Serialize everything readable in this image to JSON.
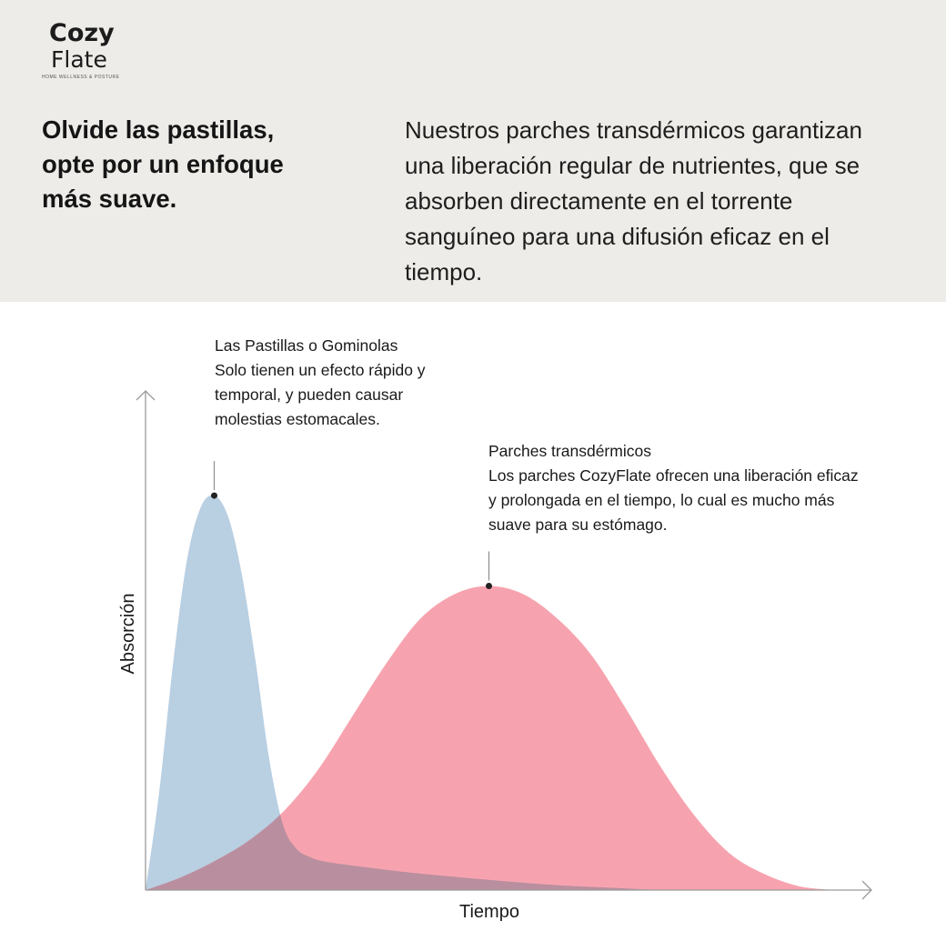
{
  "brand": {
    "logo_line1": "Cozy",
    "logo_line2": "Flate",
    "tagline": "HOME WELLNESS & POSTURE"
  },
  "header": {
    "headline_lines": [
      "Olvide las pastillas,",
      "opte por un enfoque",
      "más suave."
    ],
    "intro_lines": [
      "Nuestros parches transdérmicos garantizan",
      "una liberación regular de nutrientes, que se",
      "absorben directamente en el torrente",
      "sanguíneo para una difusión eficaz en el",
      "tiempo."
    ]
  },
  "colors": {
    "background_band": "#edece8",
    "pills_fill": "#b9cfe2",
    "patches_fill": "#f7a3af",
    "overlap_fill": "#b98f9f",
    "axis": "#9a9a9a"
  },
  "chart_data": {
    "type": "area",
    "xlabel": "Tiempo",
    "ylabel": "Absorción",
    "x_ticks": "none",
    "y_ticks": "none",
    "xlim": [
      0,
      100
    ],
    "ylim": [
      0,
      100
    ],
    "grid": false,
    "series": [
      {
        "name": "Las Pastillas o Gominolas",
        "annotation_lines": [
          "Las Pastillas o Gominolas",
          "Solo tienen un efecto rápido y",
          "temporal, y pueden causar",
          "molestias estomacales."
        ],
        "color": "#b9cfe2",
        "peak": {
          "x": 10,
          "y": 96
        },
        "x": [
          0,
          2,
          4,
          6,
          8,
          10,
          12,
          14,
          16,
          18,
          20,
          22,
          24,
          26,
          30,
          40,
          50,
          60,
          70,
          75
        ],
        "y": [
          0,
          24,
          55,
          80,
          93,
          96,
          91,
          77,
          56,
          32,
          16,
          10,
          8,
          7,
          6,
          4,
          2.5,
          1.2,
          0.4,
          0
        ]
      },
      {
        "name": "Parches transdérmicos",
        "annotation_lines": [
          "Parches transdérmicos",
          "Los parches CozyFlate ofrecen una liberación eficaz",
          "y prolongada en el tiempo, lo cual es mucho más",
          "suave para su estómago."
        ],
        "color": "#f7a3af",
        "peak": {
          "x": 50,
          "y": 74
        },
        "x": [
          0,
          5,
          10,
          15,
          20,
          25,
          30,
          35,
          40,
          45,
          50,
          55,
          60,
          65,
          70,
          75,
          80,
          85,
          90,
          95,
          100
        ],
        "y": [
          0,
          3,
          7,
          12,
          19,
          29,
          42,
          55,
          66,
          72,
          74,
          72,
          66,
          57,
          44,
          30,
          18,
          9,
          4,
          1,
          0
        ]
      }
    ]
  }
}
